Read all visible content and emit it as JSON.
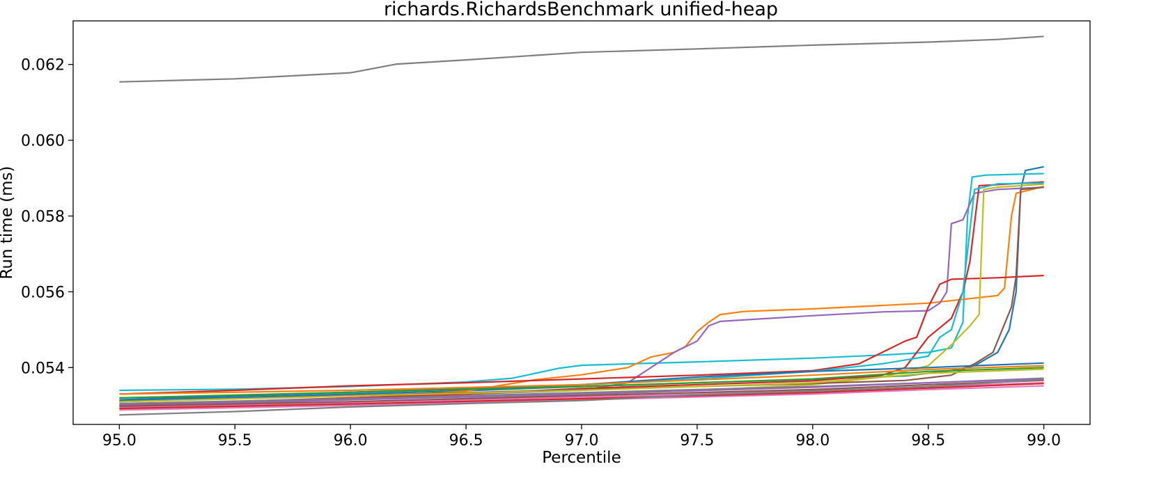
{
  "chart_data": {
    "type": "line",
    "title": "richards.RichardsBenchmark unified-heap",
    "xlabel": "Percentile",
    "ylabel": "Run time (ms)",
    "xlim": [
      94.8,
      99.2
    ],
    "ylim": [
      0.0525,
      0.06315
    ],
    "xticks": [
      95.0,
      95.5,
      96.0,
      96.5,
      97.0,
      97.5,
      98.0,
      98.5,
      99.0
    ],
    "xtick_labels": [
      "95.0",
      "95.5",
      "96.0",
      "96.5",
      "97.0",
      "97.5",
      "98.0",
      "98.5",
      "99.0"
    ],
    "yticks": [
      0.054,
      0.056,
      0.058,
      0.06,
      0.062
    ],
    "ytick_labels": [
      "0.054",
      "0.056",
      "0.058",
      "0.060",
      "0.062"
    ],
    "grid": false,
    "legend": "none",
    "series": [
      {
        "color": "#7f7f7f",
        "points": [
          [
            95.0,
            0.06154
          ],
          [
            95.5,
            0.06162
          ],
          [
            96.0,
            0.06178
          ],
          [
            96.2,
            0.06201
          ],
          [
            96.5,
            0.06212
          ],
          [
            97.0,
            0.06232
          ],
          [
            97.5,
            0.06241
          ],
          [
            98.0,
            0.06251
          ],
          [
            98.5,
            0.06259
          ],
          [
            98.8,
            0.06266
          ],
          [
            99.0,
            0.06274
          ]
        ]
      },
      {
        "color": "#1f77b4",
        "points": [
          [
            95.0,
            0.05313
          ],
          [
            95.5,
            0.05321
          ],
          [
            96.0,
            0.0533
          ],
          [
            96.5,
            0.05339
          ],
          [
            97.0,
            0.0535
          ],
          [
            97.5,
            0.0536
          ],
          [
            98.0,
            0.05369
          ],
          [
            98.4,
            0.05378
          ],
          [
            98.6,
            0.05392
          ],
          [
            98.7,
            0.05405
          ],
          [
            98.8,
            0.0544
          ],
          [
            98.85,
            0.055
          ],
          [
            98.88,
            0.056
          ],
          [
            98.9,
            0.0587
          ],
          [
            98.92,
            0.0592
          ],
          [
            99.0,
            0.0593
          ]
        ]
      },
      {
        "color": "#17becf",
        "points": [
          [
            95.0,
            0.0534
          ],
          [
            95.5,
            0.05343
          ],
          [
            96.0,
            0.0535
          ],
          [
            96.5,
            0.05362
          ],
          [
            96.7,
            0.05372
          ],
          [
            96.8,
            0.05385
          ],
          [
            96.9,
            0.05398
          ],
          [
            97.0,
            0.05406
          ],
          [
            97.5,
            0.05415
          ],
          [
            98.0,
            0.05425
          ],
          [
            98.3,
            0.05433
          ],
          [
            98.5,
            0.0544
          ],
          [
            98.6,
            0.05452
          ],
          [
            98.65,
            0.0552
          ],
          [
            98.67,
            0.058
          ],
          [
            98.69,
            0.05903
          ],
          [
            98.75,
            0.05908
          ],
          [
            99.0,
            0.05912
          ]
        ]
      },
      {
        "color": "#ff7f0e",
        "points": [
          [
            95.0,
            0.05292
          ],
          [
            95.5,
            0.05302
          ],
          [
            96.0,
            0.05318
          ],
          [
            96.5,
            0.05338
          ],
          [
            96.8,
            0.05368
          ],
          [
            97.0,
            0.05381
          ],
          [
            97.2,
            0.054
          ],
          [
            97.3,
            0.05428
          ],
          [
            97.4,
            0.0544
          ],
          [
            97.45,
            0.05456
          ],
          [
            97.5,
            0.05495
          ],
          [
            97.55,
            0.0552
          ],
          [
            97.6,
            0.0554
          ],
          [
            97.7,
            0.05548
          ],
          [
            98.0,
            0.05555
          ],
          [
            98.5,
            0.0557
          ],
          [
            98.8,
            0.0559
          ],
          [
            98.83,
            0.0561
          ],
          [
            98.86,
            0.058
          ],
          [
            98.88,
            0.0586
          ],
          [
            99.0,
            0.05878
          ]
        ]
      },
      {
        "color": "#9467bd",
        "points": [
          [
            95.0,
            0.05302
          ],
          [
            95.5,
            0.05311
          ],
          [
            96.0,
            0.0532
          ],
          [
            96.5,
            0.0533
          ],
          [
            97.0,
            0.0534
          ],
          [
            97.2,
            0.0536
          ],
          [
            97.3,
            0.054
          ],
          [
            97.4,
            0.0544
          ],
          [
            97.5,
            0.0547
          ],
          [
            97.55,
            0.0551
          ],
          [
            97.6,
            0.05522
          ],
          [
            98.0,
            0.05537
          ],
          [
            98.3,
            0.05547
          ],
          [
            98.5,
            0.0555
          ],
          [
            98.55,
            0.0557
          ],
          [
            98.58,
            0.056
          ],
          [
            98.6,
            0.0578
          ],
          [
            98.65,
            0.0579
          ],
          [
            98.7,
            0.0586
          ],
          [
            98.8,
            0.0587
          ],
          [
            99.0,
            0.05876
          ]
        ]
      },
      {
        "color": "#d62728",
        "points": [
          [
            95.0,
            0.0533
          ],
          [
            95.5,
            0.0534
          ],
          [
            96.0,
            0.05352
          ],
          [
            96.5,
            0.0536
          ],
          [
            97.0,
            0.0537
          ],
          [
            97.5,
            0.0538
          ],
          [
            98.0,
            0.05392
          ],
          [
            98.2,
            0.0541
          ],
          [
            98.3,
            0.0544
          ],
          [
            98.4,
            0.0547
          ],
          [
            98.45,
            0.0548
          ],
          [
            98.5,
            0.0556
          ],
          [
            98.55,
            0.0562
          ],
          [
            98.6,
            0.05633
          ],
          [
            98.8,
            0.05637
          ],
          [
            99.0,
            0.05643
          ]
        ]
      },
      {
        "color": "#d62728",
        "points": [
          [
            95.0,
            0.053
          ],
          [
            95.5,
            0.0531
          ],
          [
            96.0,
            0.0532
          ],
          [
            96.5,
            0.0533
          ],
          [
            97.0,
            0.05345
          ],
          [
            97.5,
            0.05355
          ],
          [
            98.0,
            0.05365
          ],
          [
            98.3,
            0.0538
          ],
          [
            98.4,
            0.054
          ],
          [
            98.5,
            0.0548
          ],
          [
            98.6,
            0.0553
          ],
          [
            98.65,
            0.056
          ],
          [
            98.68,
            0.0568
          ],
          [
            98.72,
            0.0588
          ],
          [
            99.0,
            0.0589
          ]
        ]
      },
      {
        "color": "#bcbd22",
        "points": [
          [
            95.0,
            0.0529
          ],
          [
            95.5,
            0.05298
          ],
          [
            96.0,
            0.05308
          ],
          [
            96.5,
            0.05318
          ],
          [
            97.0,
            0.05328
          ],
          [
            97.5,
            0.0534
          ],
          [
            98.0,
            0.05355
          ],
          [
            98.3,
            0.05375
          ],
          [
            98.5,
            0.05405
          ],
          [
            98.6,
            0.0546
          ],
          [
            98.68,
            0.0551
          ],
          [
            98.72,
            0.0554
          ],
          [
            98.74,
            0.0587
          ],
          [
            98.8,
            0.05876
          ],
          [
            99.0,
            0.05884
          ]
        ]
      },
      {
        "color": "#17becf",
        "points": [
          [
            95.0,
            0.0532
          ],
          [
            95.5,
            0.05326
          ],
          [
            96.0,
            0.05334
          ],
          [
            96.5,
            0.05344
          ],
          [
            97.0,
            0.05354
          ],
          [
            97.5,
            0.0537
          ],
          [
            98.0,
            0.0539
          ],
          [
            98.3,
            0.0541
          ],
          [
            98.5,
            0.0543
          ],
          [
            98.55,
            0.0548
          ],
          [
            98.6,
            0.055
          ],
          [
            98.62,
            0.0554
          ],
          [
            98.65,
            0.056
          ],
          [
            98.7,
            0.0587
          ],
          [
            98.8,
            0.05885
          ],
          [
            99.0,
            0.05887
          ]
        ]
      },
      {
        "color": "#8c564b",
        "points": [
          [
            95.0,
            0.0531
          ],
          [
            95.5,
            0.05318
          ],
          [
            96.0,
            0.05326
          ],
          [
            96.5,
            0.05334
          ],
          [
            97.0,
            0.05342
          ],
          [
            97.5,
            0.0535
          ],
          [
            98.0,
            0.05358
          ],
          [
            98.4,
            0.05366
          ],
          [
            98.6,
            0.0538
          ],
          [
            98.7,
            0.0541
          ],
          [
            98.78,
            0.0544
          ],
          [
            98.82,
            0.055
          ],
          [
            98.86,
            0.0556
          ],
          [
            98.88,
            0.0564
          ],
          [
            98.9,
            0.0587
          ],
          [
            99.0,
            0.05876
          ]
        ]
      },
      {
        "color": "#1f77b4",
        "points": [
          [
            95.0,
            0.05315
          ],
          [
            95.5,
            0.05325
          ],
          [
            96.0,
            0.05335
          ],
          [
            96.5,
            0.05345
          ],
          [
            97.0,
            0.05355
          ],
          [
            97.5,
            0.05375
          ],
          [
            98.0,
            0.0539
          ],
          [
            98.5,
            0.054
          ],
          [
            98.7,
            0.05405
          ],
          [
            99.0,
            0.05412
          ]
        ]
      },
      {
        "color": "#ff7f0e",
        "points": [
          [
            95.0,
            0.0533
          ],
          [
            96.0,
            0.0534
          ],
          [
            97.0,
            0.05355
          ],
          [
            98.0,
            0.0538
          ],
          [
            98.5,
            0.05395
          ],
          [
            99.0,
            0.05405
          ]
        ]
      },
      {
        "color": "#2ca02c",
        "points": [
          [
            95.0,
            0.0532
          ],
          [
            96.0,
            0.05335
          ],
          [
            97.0,
            0.0535
          ],
          [
            98.0,
            0.0537
          ],
          [
            98.5,
            0.0539
          ],
          [
            99.0,
            0.054
          ]
        ]
      },
      {
        "color": "#bcbd22",
        "points": [
          [
            95.0,
            0.0531
          ],
          [
            96.0,
            0.05325
          ],
          [
            97.0,
            0.0534
          ],
          [
            98.0,
            0.0536
          ],
          [
            98.5,
            0.05385
          ],
          [
            99.0,
            0.05396
          ]
        ]
      },
      {
        "color": "#e377c2",
        "points": [
          [
            95.0,
            0.05288
          ],
          [
            96.0,
            0.053
          ],
          [
            97.0,
            0.05315
          ],
          [
            98.0,
            0.0533
          ],
          [
            98.5,
            0.05342
          ],
          [
            99.0,
            0.05352
          ]
        ]
      },
      {
        "color": "#e377c2",
        "points": [
          [
            95.0,
            0.05295
          ],
          [
            96.0,
            0.05308
          ],
          [
            97.0,
            0.05322
          ],
          [
            98.0,
            0.05338
          ],
          [
            98.5,
            0.0535
          ],
          [
            99.0,
            0.0536
          ]
        ]
      },
      {
        "color": "#7f7f7f",
        "points": [
          [
            95.0,
            0.05305
          ],
          [
            96.0,
            0.05318
          ],
          [
            97.0,
            0.05334
          ],
          [
            98.0,
            0.0535
          ],
          [
            98.5,
            0.0536
          ],
          [
            99.0,
            0.05372
          ]
        ]
      },
      {
        "color": "#9467bd",
        "points": [
          [
            95.0,
            0.053
          ],
          [
            96.0,
            0.05315
          ],
          [
            97.0,
            0.0533
          ],
          [
            98.0,
            0.05348
          ],
          [
            98.5,
            0.0536
          ],
          [
            99.0,
            0.0537
          ]
        ]
      },
      {
        "color": "#8c564b",
        "points": [
          [
            95.0,
            0.05298
          ],
          [
            96.0,
            0.0531
          ],
          [
            97.0,
            0.05326
          ],
          [
            98.0,
            0.05342
          ],
          [
            98.5,
            0.05355
          ],
          [
            99.0,
            0.05366
          ]
        ]
      },
      {
        "color": "#d62728",
        "points": [
          [
            95.0,
            0.05292
          ],
          [
            96.0,
            0.05304
          ],
          [
            97.0,
            0.05318
          ],
          [
            98.0,
            0.05334
          ],
          [
            98.5,
            0.05346
          ],
          [
            99.0,
            0.05358
          ]
        ]
      },
      {
        "color": "#7f7f7f",
        "points": [
          [
            95.0,
            0.05275
          ],
          [
            95.5,
            0.05284
          ],
          [
            96.0,
            0.05296
          ],
          [
            96.5,
            0.05305
          ],
          [
            97.0,
            0.05313
          ],
          [
            97.3,
            0.05322
          ],
          [
            97.5,
            0.05328
          ],
          [
            98.0,
            0.05338
          ],
          [
            98.5,
            0.0535
          ],
          [
            99.0,
            0.05368
          ]
        ]
      }
    ]
  }
}
